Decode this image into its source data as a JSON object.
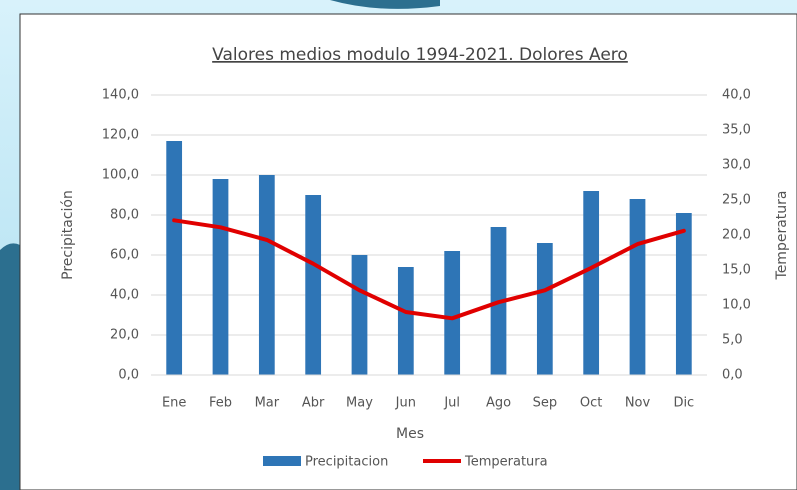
{
  "chart_data": {
    "type": "bar-line",
    "title": "Valores medios modulo 1994-2021. Dolores Aero",
    "x_label": "Mes",
    "y_label": "Precipitación",
    "y2_label": "Temperatura",
    "categories": [
      "Ene",
      "Feb",
      "Mar",
      "Abr",
      "May",
      "Jun",
      "Jul",
      "Ago",
      "Sep",
      "Oct",
      "Nov",
      "Dic"
    ],
    "series": [
      {
        "name": "Precipitacion",
        "type": "bar",
        "color": "#2e75b6",
        "values": [
          117,
          98,
          100,
          90,
          60,
          54,
          62,
          74,
          66,
          92,
          88,
          81
        ]
      },
      {
        "name": "Temperatura",
        "type": "line",
        "axis": "y2",
        "color": "#e00000",
        "values": [
          22.1,
          21.1,
          19.3,
          15.9,
          12.1,
          9.0,
          8.1,
          10.4,
          12.1,
          15.3,
          18.7,
          20.6
        ]
      }
    ],
    "ylim": [
      0,
      140
    ],
    "yticks": [
      {
        "value": 0,
        "label": "0,0"
      },
      {
        "value": 20,
        "label": "20,0"
      },
      {
        "value": 40,
        "label": "40,0"
      },
      {
        "value": 60,
        "label": "60,0"
      },
      {
        "value": 80,
        "label": "80,0"
      },
      {
        "value": 100,
        "label": "100,0"
      },
      {
        "value": 120,
        "label": "120,0"
      },
      {
        "value": 140,
        "label": "140,0"
      }
    ],
    "y2lim": [
      0,
      40
    ],
    "y2ticks": [
      {
        "value": 0,
        "label": "0,0"
      },
      {
        "value": 5,
        "label": "5,0"
      },
      {
        "value": 10,
        "label": "10,0"
      },
      {
        "value": 15,
        "label": "15,0"
      },
      {
        "value": 20,
        "label": "20,0"
      },
      {
        "value": 25,
        "label": "25,0"
      },
      {
        "value": 30,
        "label": "30,0"
      },
      {
        "value": 35,
        "label": "35,0"
      },
      {
        "value": 40,
        "label": "40,0"
      }
    ],
    "grid": true,
    "legend": "bottom"
  }
}
